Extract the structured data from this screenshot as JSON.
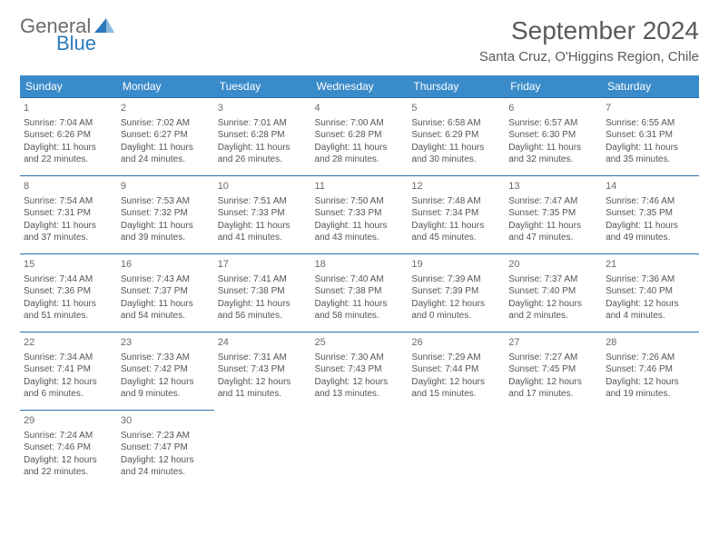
{
  "logo": {
    "general": "General",
    "blue": "Blue"
  },
  "title": "September 2024",
  "location": "Santa Cruz, O'Higgins Region, Chile",
  "colors": {
    "header_bg": "#3a8bc9",
    "header_text": "#ffffff",
    "row_divider": "#2f6fa6",
    "body_text": "#555555",
    "title_text": "#5a5a5a",
    "logo_gray": "#6b6b6b",
    "logo_blue": "#2b7bbd",
    "page_bg": "#ffffff"
  },
  "days_of_week": [
    "Sunday",
    "Monday",
    "Tuesday",
    "Wednesday",
    "Thursday",
    "Friday",
    "Saturday"
  ],
  "weeks": [
    [
      {
        "n": "1",
        "sr": "Sunrise: 7:04 AM",
        "ss": "Sunset: 6:26 PM",
        "d1": "Daylight: 11 hours",
        "d2": "and 22 minutes."
      },
      {
        "n": "2",
        "sr": "Sunrise: 7:02 AM",
        "ss": "Sunset: 6:27 PM",
        "d1": "Daylight: 11 hours",
        "d2": "and 24 minutes."
      },
      {
        "n": "3",
        "sr": "Sunrise: 7:01 AM",
        "ss": "Sunset: 6:28 PM",
        "d1": "Daylight: 11 hours",
        "d2": "and 26 minutes."
      },
      {
        "n": "4",
        "sr": "Sunrise: 7:00 AM",
        "ss": "Sunset: 6:28 PM",
        "d1": "Daylight: 11 hours",
        "d2": "and 28 minutes."
      },
      {
        "n": "5",
        "sr": "Sunrise: 6:58 AM",
        "ss": "Sunset: 6:29 PM",
        "d1": "Daylight: 11 hours",
        "d2": "and 30 minutes."
      },
      {
        "n": "6",
        "sr": "Sunrise: 6:57 AM",
        "ss": "Sunset: 6:30 PM",
        "d1": "Daylight: 11 hours",
        "d2": "and 32 minutes."
      },
      {
        "n": "7",
        "sr": "Sunrise: 6:55 AM",
        "ss": "Sunset: 6:31 PM",
        "d1": "Daylight: 11 hours",
        "d2": "and 35 minutes."
      }
    ],
    [
      {
        "n": "8",
        "sr": "Sunrise: 7:54 AM",
        "ss": "Sunset: 7:31 PM",
        "d1": "Daylight: 11 hours",
        "d2": "and 37 minutes."
      },
      {
        "n": "9",
        "sr": "Sunrise: 7:53 AM",
        "ss": "Sunset: 7:32 PM",
        "d1": "Daylight: 11 hours",
        "d2": "and 39 minutes."
      },
      {
        "n": "10",
        "sr": "Sunrise: 7:51 AM",
        "ss": "Sunset: 7:33 PM",
        "d1": "Daylight: 11 hours",
        "d2": "and 41 minutes."
      },
      {
        "n": "11",
        "sr": "Sunrise: 7:50 AM",
        "ss": "Sunset: 7:33 PM",
        "d1": "Daylight: 11 hours",
        "d2": "and 43 minutes."
      },
      {
        "n": "12",
        "sr": "Sunrise: 7:48 AM",
        "ss": "Sunset: 7:34 PM",
        "d1": "Daylight: 11 hours",
        "d2": "and 45 minutes."
      },
      {
        "n": "13",
        "sr": "Sunrise: 7:47 AM",
        "ss": "Sunset: 7:35 PM",
        "d1": "Daylight: 11 hours",
        "d2": "and 47 minutes."
      },
      {
        "n": "14",
        "sr": "Sunrise: 7:46 AM",
        "ss": "Sunset: 7:35 PM",
        "d1": "Daylight: 11 hours",
        "d2": "and 49 minutes."
      }
    ],
    [
      {
        "n": "15",
        "sr": "Sunrise: 7:44 AM",
        "ss": "Sunset: 7:36 PM",
        "d1": "Daylight: 11 hours",
        "d2": "and 51 minutes."
      },
      {
        "n": "16",
        "sr": "Sunrise: 7:43 AM",
        "ss": "Sunset: 7:37 PM",
        "d1": "Daylight: 11 hours",
        "d2": "and 54 minutes."
      },
      {
        "n": "17",
        "sr": "Sunrise: 7:41 AM",
        "ss": "Sunset: 7:38 PM",
        "d1": "Daylight: 11 hours",
        "d2": "and 56 minutes."
      },
      {
        "n": "18",
        "sr": "Sunrise: 7:40 AM",
        "ss": "Sunset: 7:38 PM",
        "d1": "Daylight: 11 hours",
        "d2": "and 58 minutes."
      },
      {
        "n": "19",
        "sr": "Sunrise: 7:39 AM",
        "ss": "Sunset: 7:39 PM",
        "d1": "Daylight: 12 hours",
        "d2": "and 0 minutes."
      },
      {
        "n": "20",
        "sr": "Sunrise: 7:37 AM",
        "ss": "Sunset: 7:40 PM",
        "d1": "Daylight: 12 hours",
        "d2": "and 2 minutes."
      },
      {
        "n": "21",
        "sr": "Sunrise: 7:36 AM",
        "ss": "Sunset: 7:40 PM",
        "d1": "Daylight: 12 hours",
        "d2": "and 4 minutes."
      }
    ],
    [
      {
        "n": "22",
        "sr": "Sunrise: 7:34 AM",
        "ss": "Sunset: 7:41 PM",
        "d1": "Daylight: 12 hours",
        "d2": "and 6 minutes."
      },
      {
        "n": "23",
        "sr": "Sunrise: 7:33 AM",
        "ss": "Sunset: 7:42 PM",
        "d1": "Daylight: 12 hours",
        "d2": "and 9 minutes."
      },
      {
        "n": "24",
        "sr": "Sunrise: 7:31 AM",
        "ss": "Sunset: 7:43 PM",
        "d1": "Daylight: 12 hours",
        "d2": "and 11 minutes."
      },
      {
        "n": "25",
        "sr": "Sunrise: 7:30 AM",
        "ss": "Sunset: 7:43 PM",
        "d1": "Daylight: 12 hours",
        "d2": "and 13 minutes."
      },
      {
        "n": "26",
        "sr": "Sunrise: 7:29 AM",
        "ss": "Sunset: 7:44 PM",
        "d1": "Daylight: 12 hours",
        "d2": "and 15 minutes."
      },
      {
        "n": "27",
        "sr": "Sunrise: 7:27 AM",
        "ss": "Sunset: 7:45 PM",
        "d1": "Daylight: 12 hours",
        "d2": "and 17 minutes."
      },
      {
        "n": "28",
        "sr": "Sunrise: 7:26 AM",
        "ss": "Sunset: 7:46 PM",
        "d1": "Daylight: 12 hours",
        "d2": "and 19 minutes."
      }
    ],
    [
      {
        "n": "29",
        "sr": "Sunrise: 7:24 AM",
        "ss": "Sunset: 7:46 PM",
        "d1": "Daylight: 12 hours",
        "d2": "and 22 minutes."
      },
      {
        "n": "30",
        "sr": "Sunrise: 7:23 AM",
        "ss": "Sunset: 7:47 PM",
        "d1": "Daylight: 12 hours",
        "d2": "and 24 minutes."
      },
      null,
      null,
      null,
      null,
      null
    ]
  ]
}
